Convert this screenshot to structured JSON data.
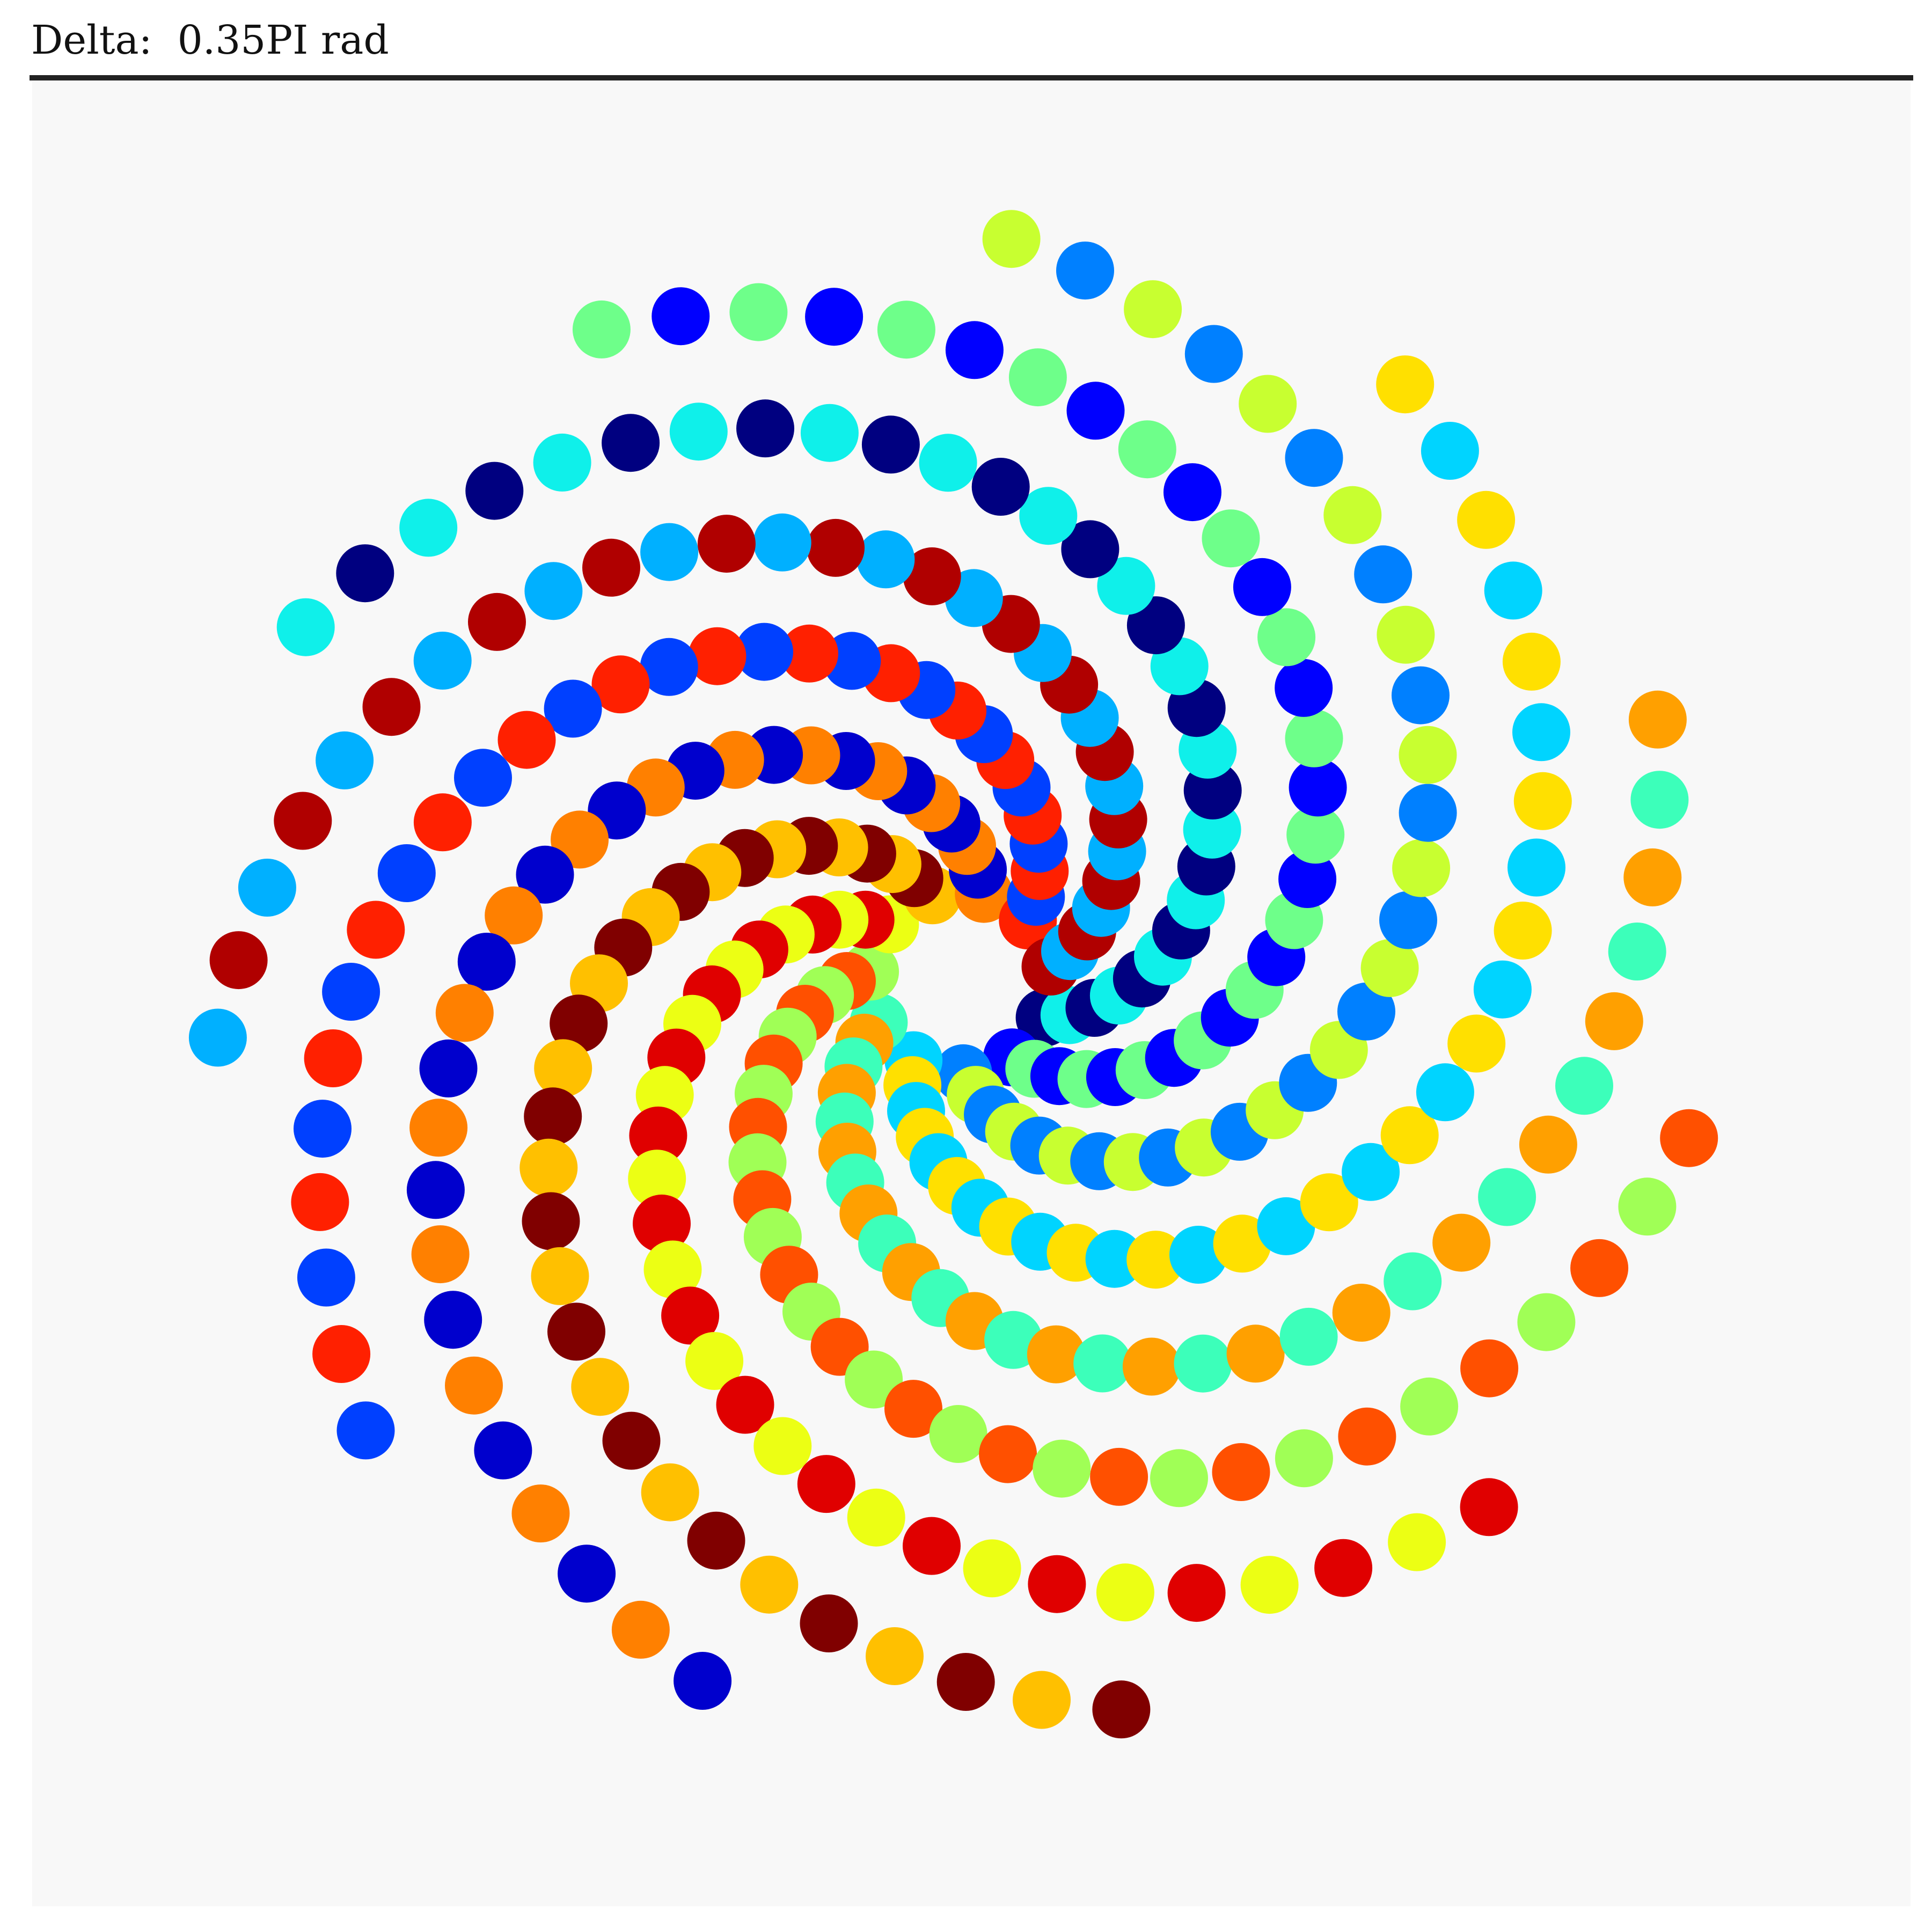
{
  "header": {
    "title": "Delta:  0.35PI rad"
  },
  "colors": {
    "background": "#f8f8f8",
    "rule": "#222222",
    "palette": [
      "#000080",
      "#0000cd",
      "#0000ff",
      "#0040ff",
      "#0080ff",
      "#00b0ff",
      "#00d4ff",
      "#0ff0ea",
      "#3cffba",
      "#6eff8a",
      "#a0ff56",
      "#c8ff30",
      "#ecff14",
      "#ffe000",
      "#ffc000",
      "#ffa000",
      "#ff8000",
      "#ff5000",
      "#ff2000",
      "#e00000",
      "#b00000",
      "#800000"
    ]
  },
  "pattern": {
    "arms": 11,
    "dots_per_arm": 30,
    "delta": "0.35PI"
  }
}
